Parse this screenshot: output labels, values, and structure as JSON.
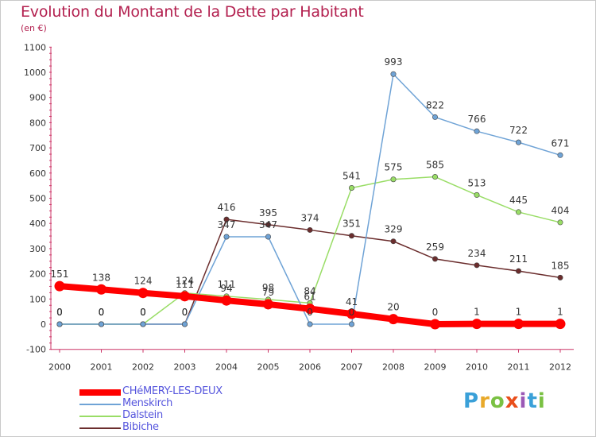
{
  "title": "Evolution du Montant de la Dette par Habitant",
  "subtitle": "(en €)",
  "logo": {
    "text": "Proxiti",
    "colors": [
      "#3aa0d8",
      "#e8a92a",
      "#7ac143",
      "#e94e1b",
      "#9b59b6",
      "#3aa0d8",
      "#7ac143"
    ]
  },
  "chart_data": {
    "type": "line",
    "x": [
      "2000",
      "2001",
      "2002",
      "2003",
      "2004",
      "2005",
      "2006",
      "2007",
      "2008",
      "2009",
      "2010",
      "2011",
      "2012"
    ],
    "ylim": [
      -100,
      1100
    ],
    "yticks": [
      -100,
      0,
      100,
      200,
      300,
      400,
      500,
      600,
      700,
      800,
      900,
      1000,
      1100
    ],
    "grid": false,
    "legend_position": "bottom-left",
    "series": [
      {
        "name": "CHéMERY-LES-DEUX",
        "color": "#ff0000",
        "values": [
          151,
          138,
          124,
          111,
          94,
          79,
          61,
          41,
          20,
          0,
          1,
          1,
          1
        ],
        "labels": [
          "151",
          "138",
          "124",
          "111",
          "94",
          "79",
          "61",
          "41",
          "20",
          "0",
          "1",
          "1",
          "1"
        ]
      },
      {
        "name": "Menskirch",
        "color": "#6fa3d6",
        "values": [
          0,
          0,
          0,
          0,
          347,
          347,
          0,
          0,
          993,
          822,
          766,
          722,
          671
        ],
        "labels": [
          "0",
          "0",
          "0",
          "0",
          "347",
          "347",
          "0",
          "0",
          "993",
          "822",
          "766",
          "722",
          "671"
        ]
      },
      {
        "name": "Dalstein",
        "color": "#99dd66",
        "values": [
          0,
          0,
          0,
          124,
          111,
          98,
          84,
          541,
          575,
          585,
          513,
          445,
          404
        ],
        "labels": [
          "0",
          "0",
          "0",
          "124",
          "111",
          "98",
          "84",
          "541",
          "575",
          "585",
          "513",
          "445",
          "404"
        ]
      },
      {
        "name": "Bibiche",
        "color": "#6b2d2d",
        "values": [
          0,
          0,
          0,
          0,
          416,
          395,
          374,
          351,
          329,
          259,
          234,
          211,
          185
        ],
        "labels": [
          "0",
          "0",
          "0",
          "0",
          "416",
          "395",
          "374",
          "351",
          "329",
          "259",
          "234",
          "211",
          "185"
        ]
      }
    ]
  }
}
